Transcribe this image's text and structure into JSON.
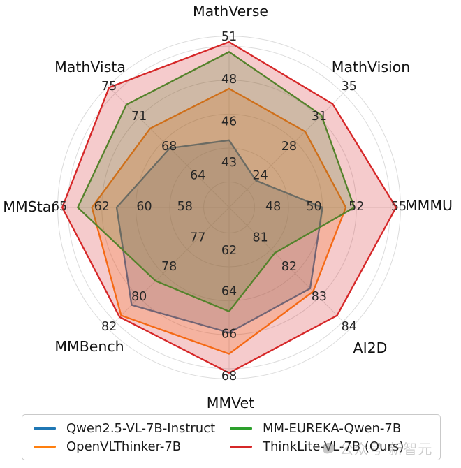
{
  "chart_data": {
    "type": "radar",
    "axes": [
      {
        "label": "MathVerse",
        "ticks": [
          51,
          48,
          46,
          43
        ]
      },
      {
        "label": "MathVision",
        "ticks": [
          35,
          31,
          28,
          24
        ]
      },
      {
        "label": "MMMU",
        "ticks": [
          55,
          52,
          50,
          48
        ]
      },
      {
        "label": "AI2D",
        "ticks": [
          84,
          83,
          82,
          81
        ]
      },
      {
        "label": "MMVet",
        "ticks": [
          68,
          66,
          64,
          62
        ]
      },
      {
        "label": "MMBench",
        "ticks": [
          82,
          80,
          78,
          77
        ]
      },
      {
        "label": "MMStar",
        "ticks": [
          65,
          62,
          60,
          58
        ]
      },
      {
        "label": "MathVista",
        "ticks": [
          75,
          71,
          68,
          64
        ]
      }
    ],
    "series": [
      {
        "name": "Qwen2.5-VL-7B-Instruct",
        "color": "#1f77b4",
        "values": [
          44.7,
          23.4,
          50.4,
          82.7,
          65.9,
          80.5,
          61.3,
          67.9
        ]
      },
      {
        "name": "OpenVLThinker-7B",
        "color": "#ff7f0e",
        "values": [
          47.6,
          29.6,
          51.5,
          82.8,
          66.9,
          81.2,
          62.7,
          69.9
        ]
      },
      {
        "name": "MM-EUREKA-Qwen-7B",
        "color": "#2ca02c",
        "values": [
          50.0,
          31.3,
          51.9,
          81.5,
          64.9,
          78.9,
          63.7,
          72.7
        ]
      },
      {
        "name": "ThinkLite-VL-7B (Ours)",
        "color": "#d62728",
        "values": [
          50.7,
          32.8,
          54.8,
          83.6,
          67.8,
          81.3,
          64.8,
          75.0
        ]
      }
    ],
    "legend_position": "bottom",
    "grid": true
  },
  "watermark": {
    "text": "公众号·新智元"
  }
}
